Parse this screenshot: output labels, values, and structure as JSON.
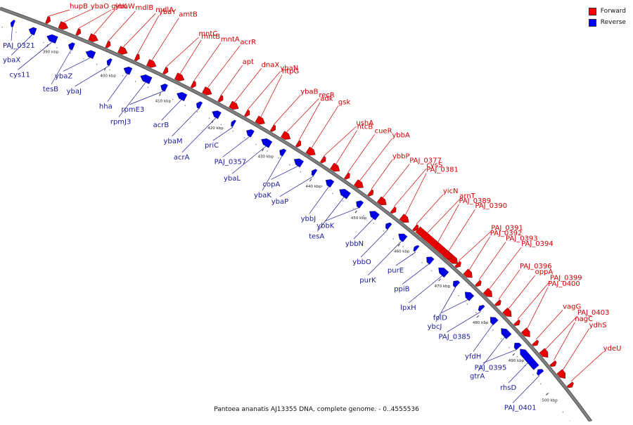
{
  "legend": {
    "forward_label": "Forward",
    "reverse_label": "Reverse",
    "forward_color": "#ff0000",
    "reverse_color": "#0000ff"
  },
  "caption": "Pantoea ananatis AJ13355 DNA, complete genome. - 0..4555536",
  "colors": {
    "forward": "#e60000",
    "reverse": "#0000e6",
    "backbone": "#808080",
    "forward_label": "#d00000",
    "reverse_label": "#1a1a99"
  },
  "ticks": [
    "390 kbp",
    "400 kbp",
    "410 kbp",
    "420 kbp",
    "430 kbp",
    "440 kbp",
    "450 kbp",
    "460 kbp",
    "470 kbp",
    "480 kbp",
    "490 kbp",
    "500 kbp"
  ],
  "forward_genes": [
    "hupB",
    "ybaO",
    "glnK",
    "ybaW",
    "mdlB",
    "mdlA",
    "ybaY",
    "amtB",
    "mntC",
    "mntB",
    "mntA",
    "acrR",
    "apt",
    "dnaX",
    "ybaN",
    "htpG",
    "ybaB",
    "recR",
    "adk",
    "gsk",
    "ushA",
    "ntcB",
    "cueR",
    "ybbA",
    "ybbP",
    "PAJ_0377",
    "cysS",
    "PAJ_0381",
    "yicN",
    "arnT",
    "PAJ_0389",
    "PAJ_0390",
    "PAJ_0391",
    "PAJ_0392",
    "PAJ_0393",
    "PAJ_0394",
    "PAJ_0396",
    "oppA",
    "PAJ_0399",
    "PAJ_0400",
    "vagG",
    "PAJ_0403",
    "nagC",
    "ydhS",
    "ydeU"
  ],
  "reverse_genes": [
    "PAJ_0321",
    "ybaX",
    "cys11",
    "tesB",
    "ybaZ",
    "ybaJ",
    "hha",
    "rpmJ3",
    "rpmE3",
    "acrB",
    "ybaM",
    "acrA",
    "priC",
    "PAJ_0357",
    "ybaL",
    "ybaK",
    "copA",
    "ybaP",
    "ybbJ",
    "tesA",
    "ybbK",
    "ybbN",
    "ybbO",
    "purK",
    "purE",
    "ppiB",
    "lpxH",
    "ybcJ",
    "folD",
    "PAJ_0385",
    "yfdH",
    "gtrA",
    "PAJ_0395",
    "rhsD",
    "PAJ_0401"
  ]
}
